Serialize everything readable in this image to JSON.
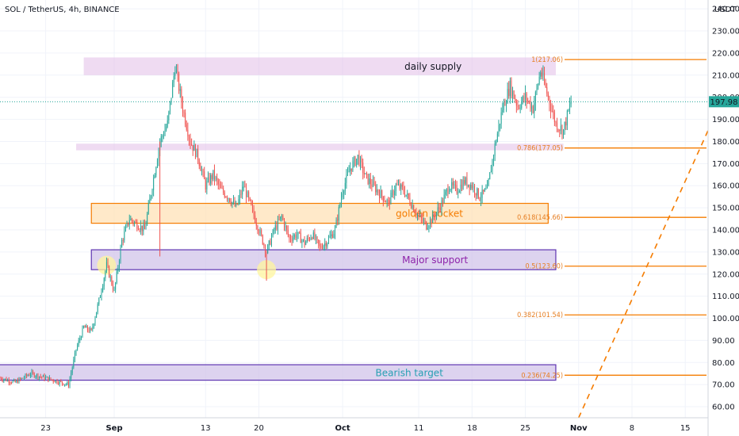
{
  "header": {
    "symbol_label": "SOL / TetherUS, 4h, BINANCE",
    "currency_label": "USDT"
  },
  "colors": {
    "up": "#26a69a",
    "down": "#ef5350",
    "fib_line": "#f57c00",
    "trend": "#f57c00",
    "price_badge": "#26a69a",
    "supply_fill": "#e1bee7",
    "golden_fill": "#ffe0b2",
    "golden_stroke": "#f57c00",
    "support_fill": "#d1c4e9",
    "support_stroke": "#5e35b1",
    "highlight": "#fff59d"
  },
  "chart_data": {
    "type": "candlestick",
    "y_axis": {
      "range": [
        55,
        244
      ],
      "ticks": [
        60,
        70,
        80,
        90,
        100,
        110,
        120,
        130,
        140,
        150,
        160,
        170,
        180,
        190,
        200,
        210,
        220,
        230,
        240
      ],
      "tick_labels": [
        "60.00",
        "70.00",
        "80.00",
        "90.00",
        "100.00",
        "110.00",
        "120.00",
        "130.00",
        "140.00",
        "150.00",
        "160.00",
        "170.00",
        "180.00",
        "190.00",
        "200.00",
        "210.00",
        "220.00",
        "230.00",
        "240.00"
      ]
    },
    "x_axis": {
      "range": [
        "2021-08-17",
        "2021-11-18"
      ],
      "ticks": [
        {
          "date": "2021-08-23",
          "label": "23"
        },
        {
          "date": "2021-09-01",
          "label": "Sep"
        },
        {
          "date": "2021-09-13",
          "label": "13"
        },
        {
          "date": "2021-09-20",
          "label": "20"
        },
        {
          "date": "2021-10-01",
          "label": "Oct"
        },
        {
          "date": "2021-10-11",
          "label": "11"
        },
        {
          "date": "2021-10-18",
          "label": "18"
        },
        {
          "date": "2021-10-25",
          "label": "25"
        },
        {
          "date": "2021-11-01",
          "label": "Nov"
        },
        {
          "date": "2021-11-08",
          "label": "8"
        },
        {
          "date": "2021-11-15",
          "label": "15"
        }
      ]
    },
    "price_path": [
      {
        "date": "2021-08-17",
        "price": 73
      },
      {
        "date": "2021-08-19",
        "price": 71
      },
      {
        "date": "2021-08-21",
        "price": 75
      },
      {
        "date": "2021-08-24",
        "price": 72
      },
      {
        "date": "2021-08-26",
        "price": 70
      },
      {
        "date": "2021-08-27",
        "price": 86
      },
      {
        "date": "2021-08-28",
        "price": 96
      },
      {
        "date": "2021-08-29",
        "price": 94
      },
      {
        "date": "2021-08-30",
        "price": 108
      },
      {
        "date": "2021-08-31",
        "price": 124
      },
      {
        "date": "2021-09-01",
        "price": 112
      },
      {
        "date": "2021-09-02",
        "price": 135
      },
      {
        "date": "2021-09-03",
        "price": 145
      },
      {
        "date": "2021-09-05",
        "price": 140
      },
      {
        "date": "2021-09-06",
        "price": 160
      },
      {
        "date": "2021-09-07",
        "price": 180
      },
      {
        "date": "2021-09-08",
        "price": 188
      },
      {
        "date": "2021-09-09",
        "price": 214
      },
      {
        "date": "2021-09-10",
        "price": 195
      },
      {
        "date": "2021-09-11",
        "price": 180
      },
      {
        "date": "2021-09-12",
        "price": 173
      },
      {
        "date": "2021-09-13",
        "price": 160
      },
      {
        "date": "2021-09-14",
        "price": 165
      },
      {
        "date": "2021-09-15",
        "price": 158
      },
      {
        "date": "2021-09-16",
        "price": 155
      },
      {
        "date": "2021-09-17",
        "price": 150
      },
      {
        "date": "2021-09-18",
        "price": 160
      },
      {
        "date": "2021-09-19",
        "price": 150
      },
      {
        "date": "2021-09-20",
        "price": 140
      },
      {
        "date": "2021-09-21",
        "price": 130
      },
      {
        "date": "2021-09-22",
        "price": 140
      },
      {
        "date": "2021-09-23",
        "price": 146
      },
      {
        "date": "2021-09-24",
        "price": 136
      },
      {
        "date": "2021-09-25",
        "price": 138
      },
      {
        "date": "2021-09-26",
        "price": 134
      },
      {
        "date": "2021-09-27",
        "price": 138
      },
      {
        "date": "2021-09-28",
        "price": 132
      },
      {
        "date": "2021-09-29",
        "price": 135
      },
      {
        "date": "2021-09-30",
        "price": 140
      },
      {
        "date": "2021-10-01",
        "price": 158
      },
      {
        "date": "2021-10-02",
        "price": 168
      },
      {
        "date": "2021-10-03",
        "price": 173
      },
      {
        "date": "2021-10-04",
        "price": 164
      },
      {
        "date": "2021-10-05",
        "price": 160
      },
      {
        "date": "2021-10-06",
        "price": 156
      },
      {
        "date": "2021-10-07",
        "price": 152
      },
      {
        "date": "2021-10-08",
        "price": 160
      },
      {
        "date": "2021-10-09",
        "price": 158
      },
      {
        "date": "2021-10-10",
        "price": 152
      },
      {
        "date": "2021-10-11",
        "price": 146
      },
      {
        "date": "2021-10-12",
        "price": 142
      },
      {
        "date": "2021-10-13",
        "price": 146
      },
      {
        "date": "2021-10-14",
        "price": 152
      },
      {
        "date": "2021-10-15",
        "price": 160
      },
      {
        "date": "2021-10-16",
        "price": 158
      },
      {
        "date": "2021-10-17",
        "price": 162
      },
      {
        "date": "2021-10-18",
        "price": 160
      },
      {
        "date": "2021-10-19",
        "price": 155
      },
      {
        "date": "2021-10-20",
        "price": 158
      },
      {
        "date": "2021-10-21",
        "price": 178
      },
      {
        "date": "2021-10-22",
        "price": 195
      },
      {
        "date": "2021-10-23",
        "price": 205
      },
      {
        "date": "2021-10-24",
        "price": 196
      },
      {
        "date": "2021-10-25",
        "price": 200
      },
      {
        "date": "2021-10-26",
        "price": 195
      },
      {
        "date": "2021-10-27",
        "price": 212
      },
      {
        "date": "2021-10-28",
        "price": 200
      },
      {
        "date": "2021-10-29",
        "price": 188
      },
      {
        "date": "2021-10-30",
        "price": 185
      },
      {
        "date": "2021-10-31",
        "price": 198
      }
    ],
    "spikes": [
      {
        "date": "2021-09-07",
        "low": 128
      },
      {
        "date": "2021-09-21",
        "low": 117
      }
    ],
    "last_price": {
      "value": 197.98,
      "label": "197.98"
    },
    "zones": [
      {
        "name": "daily-supply",
        "label": "daily supply",
        "y_low": 210,
        "y_high": 218,
        "x_start": "2021-08-28",
        "x_end": "2021-10-29",
        "label_color": "#131722"
      },
      {
        "name": "supply-thin",
        "label": "",
        "y_low": 176,
        "y_high": 179,
        "x_start": "2021-08-27",
        "x_end": "2021-10-30",
        "label_color": "#131722"
      },
      {
        "name": "golden-pocket",
        "label": "golden pocket",
        "y_low": 143,
        "y_high": 152,
        "x_start": "2021-08-29",
        "x_end": "2021-10-28",
        "label_color": "#f57c00"
      },
      {
        "name": "major-support",
        "label": "Major support",
        "y_low": 122,
        "y_high": 131,
        "x_start": "2021-08-29",
        "x_end": "2021-10-29",
        "label_color": "#8e24aa"
      },
      {
        "name": "bearish-target",
        "label": "Bearish target",
        "y_low": 72,
        "y_high": 79,
        "x_start": "2021-08-16",
        "x_end": "2021-10-29",
        "label_color": "#26a0b3"
      }
    ],
    "fib_levels": [
      {
        "ratio": 1,
        "value": 217.06,
        "label": "1(217.06)"
      },
      {
        "ratio": 0.786,
        "value": 177.05,
        "label": "0.786(177.05)"
      },
      {
        "ratio": 0.618,
        "value": 145.66,
        "label": "0.618(145.66)"
      },
      {
        "ratio": 0.5,
        "value": 123.6,
        "label": "0.5(123.60)"
      },
      {
        "ratio": 0.382,
        "value": 101.54,
        "label": "0.382(101.54)"
      },
      {
        "ratio": 0.236,
        "value": 74.25,
        "label": "0.236(74.25)"
      }
    ],
    "highlights": [
      {
        "date": "2021-08-31",
        "price": 124
      },
      {
        "date": "2021-09-21",
        "price": 122
      }
    ],
    "trend_line": {
      "from": {
        "date": "2021-11-01",
        "price": 55
      },
      "to": {
        "date": "2021-11-18",
        "price": 185
      }
    }
  }
}
